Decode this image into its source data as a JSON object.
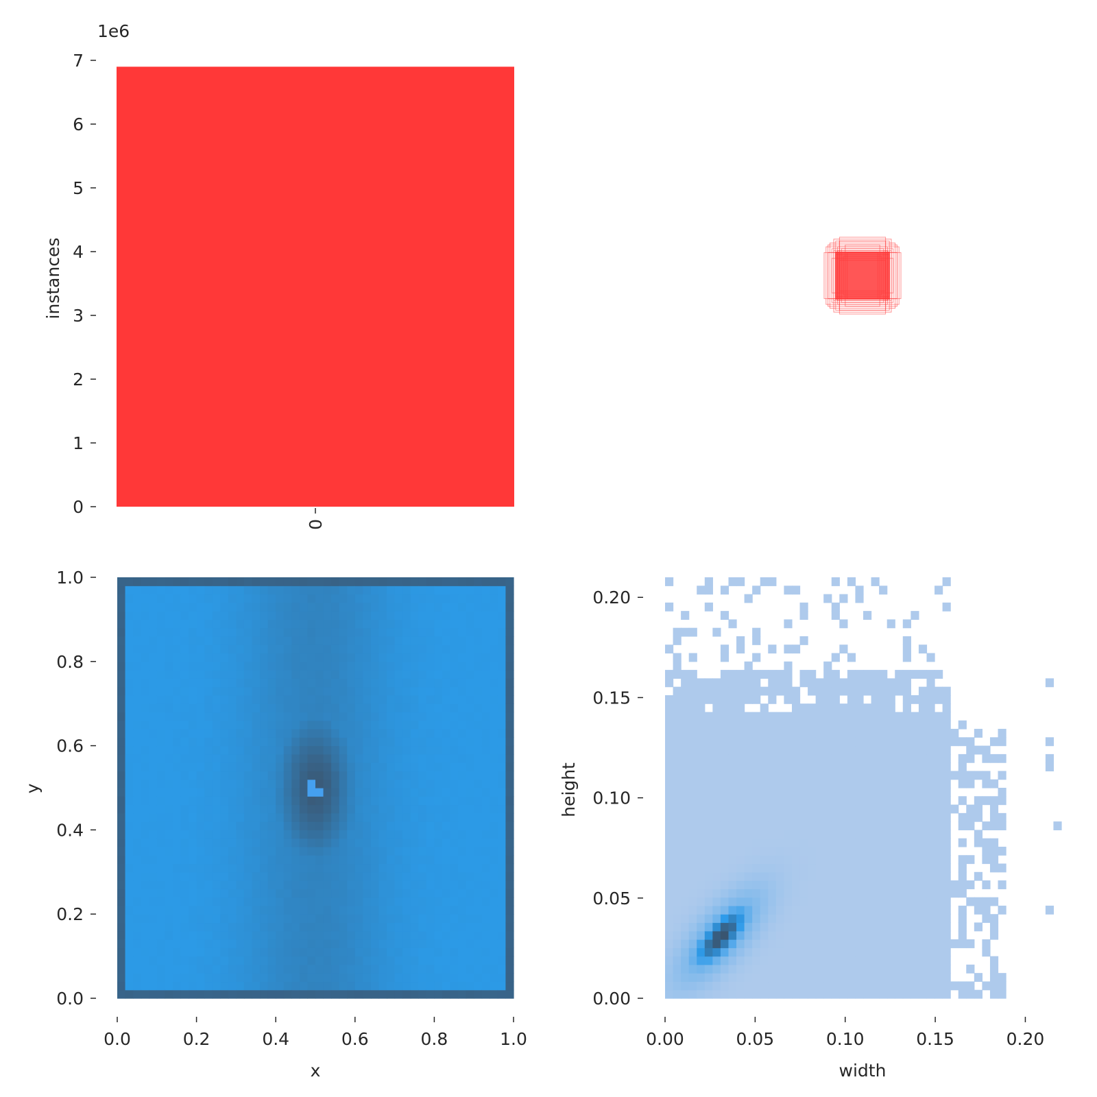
{
  "chart_data": [
    {
      "type": "bar",
      "panel": "top-left",
      "categories": [
        "0"
      ],
      "values": [
        6900000
      ],
      "color": "#ff3838",
      "ylabel": "instances",
      "xlabel": "",
      "ylim": [
        0,
        7000000
      ],
      "yticks": [
        0,
        1,
        2,
        3,
        4,
        5,
        6,
        7
      ],
      "ytick_labels": [
        "0",
        "1",
        "2",
        "3",
        "4",
        "5",
        "6",
        "7"
      ],
      "y_offset_label": "1e6",
      "grid": false
    },
    {
      "type": "scatter",
      "panel": "top-right",
      "description_free": true,
      "color": "#ff3838",
      "boxes_wh": [
        [
          0.14,
          0.18
        ],
        [
          0.16,
          0.14
        ],
        [
          0.2,
          0.12
        ],
        [
          0.12,
          0.2
        ],
        [
          0.18,
          0.16
        ],
        [
          0.1,
          0.1
        ],
        [
          0.13,
          0.15
        ],
        [
          0.15,
          0.13
        ],
        [
          0.08,
          0.12
        ],
        [
          0.12,
          0.08
        ],
        [
          0.17,
          0.17
        ],
        [
          0.11,
          0.14
        ],
        [
          0.14,
          0.11
        ],
        [
          0.19,
          0.15
        ],
        [
          0.15,
          0.19
        ],
        [
          0.09,
          0.16
        ],
        [
          0.16,
          0.09
        ],
        [
          0.13,
          0.13
        ],
        [
          0.12,
          0.18
        ],
        [
          0.18,
          0.12
        ]
      ],
      "grid": false
    },
    {
      "type": "heatmap",
      "panel": "bottom-left",
      "xlabel": "x",
      "ylabel": "y",
      "xlim": [
        0.0,
        1.0
      ],
      "ylim": [
        0.0,
        1.0
      ],
      "xticks": [
        "0.0",
        "0.2",
        "0.4",
        "0.6",
        "0.8",
        "1.0"
      ],
      "yticks": [
        "0.0",
        "0.2",
        "0.4",
        "0.6",
        "0.8",
        "1.0"
      ],
      "colors": {
        "low": "#2c9ae6",
        "high": "#3a5a78",
        "center": "#45a0f0"
      },
      "density": "highest at x≈0.5, y≈0.5 and along the borders",
      "grid": false
    },
    {
      "type": "heatmap",
      "panel": "bottom-right",
      "xlabel": "width",
      "ylabel": "height",
      "xlim": [
        0.0,
        0.22
      ],
      "ylim": [
        0.0,
        0.21
      ],
      "xticks": [
        "0.00",
        "0.05",
        "0.10",
        "0.15",
        "0.20"
      ],
      "yticks": [
        "0.00",
        "0.05",
        "0.10",
        "0.15",
        "0.20"
      ],
      "peak": [
        0.03,
        0.03
      ],
      "colors": {
        "low": "#aecaec",
        "mid": "#2e9bea",
        "high": "#3a5068"
      },
      "grid": false
    }
  ]
}
